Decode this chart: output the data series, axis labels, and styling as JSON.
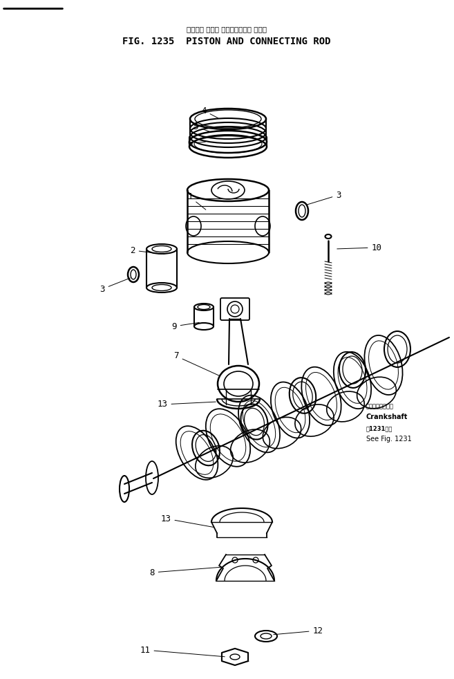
{
  "title_jp": "ピストン および コネクティング ロッド",
  "title_en": "FIG. 1235  PISTON AND CONNECTING ROD",
  "bg_color": "#ffffff",
  "line_color": "#000000",
  "fig_width": 6.57,
  "fig_height": 9.82,
  "dpi": 100,
  "crankshaft_note_jp": "クランクシャフト",
  "crankshaft_note_en": "Crankshaft",
  "crankshaft_ref_jp": "図1231参照",
  "crankshaft_ref_en": "See Fig. 1231"
}
